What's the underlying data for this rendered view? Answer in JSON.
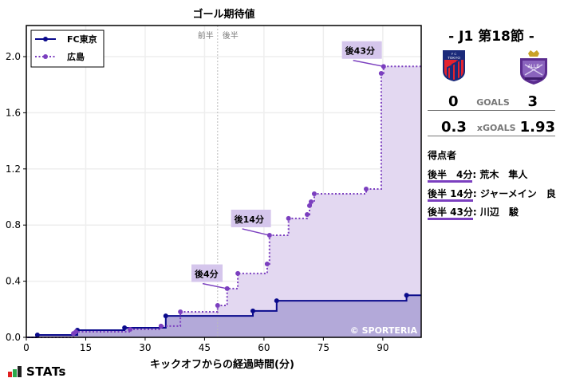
{
  "chart_data": {
    "type": "line",
    "subtype": "step",
    "title": "ゴール期待値",
    "xlabel": "キックオフからの経過時間(分)",
    "ylabel": "",
    "xlim": [
      0,
      99.7
    ],
    "ylim": [
      0,
      2.2
    ],
    "xticks": [
      0,
      15,
      30,
      45,
      60,
      75,
      90
    ],
    "yticks": [
      0.0,
      0.4,
      0.8,
      1.2,
      1.6,
      2.0
    ],
    "grid": true,
    "legend_position": "upper left",
    "half_line": {
      "x": 48.3,
      "labels": [
        "前半",
        "後半"
      ]
    },
    "watermark": "© SPORTERIA",
    "series": [
      {
        "name": "FC東京",
        "color": "#0a0a8c",
        "line_style": "solid",
        "fill": "#b3a9d9",
        "points": [
          {
            "x": 2.8,
            "y": 0.017
          },
          {
            "x": 12.9,
            "y": 0.051
          },
          {
            "x": 24.8,
            "y": 0.068
          },
          {
            "x": 35.2,
            "y": 0.153
          },
          {
            "x": 57.2,
            "y": 0.188
          },
          {
            "x": 63.2,
            "y": 0.261
          },
          {
            "x": 96.0,
            "y": 0.3
          }
        ]
      },
      {
        "name": "広島",
        "color": "#7b3fbf",
        "line_style": "dotted",
        "fill": "#e3d8f1",
        "points": [
          {
            "x": 11.9,
            "y": 0.028
          },
          {
            "x": 12.5,
            "y": 0.04
          },
          {
            "x": 26.2,
            "y": 0.057
          },
          {
            "x": 34.0,
            "y": 0.08
          },
          {
            "x": 38.9,
            "y": 0.182
          },
          {
            "x": 48.3,
            "y": 0.227
          },
          {
            "x": 50.7,
            "y": 0.347
          },
          {
            "x": 53.4,
            "y": 0.455
          },
          {
            "x": 60.8,
            "y": 0.523
          },
          {
            "x": 61.4,
            "y": 0.727
          },
          {
            "x": 66.2,
            "y": 0.847
          },
          {
            "x": 70.9,
            "y": 0.875
          },
          {
            "x": 71.5,
            "y": 0.938
          },
          {
            "x": 71.9,
            "y": 0.966
          },
          {
            "x": 72.7,
            "y": 1.023
          },
          {
            "x": 85.8,
            "y": 1.057
          },
          {
            "x": 89.6,
            "y": 1.881
          },
          {
            "x": 90.2,
            "y": 1.93
          }
        ]
      }
    ],
    "annotations": [
      {
        "text": "後4分",
        "x": 50.7,
        "y": 0.347,
        "box_x": 42.5,
        "box_y": 0.44
      },
      {
        "text": "後14分",
        "x": 61.4,
        "y": 0.727,
        "box_x": 52.5,
        "box_y": 0.83
      },
      {
        "text": "後43分",
        "x": 90.2,
        "y": 1.93,
        "box_x": 80.5,
        "box_y": 2.03
      }
    ]
  },
  "match": {
    "round": "- J1 第18節 -",
    "home": {
      "name": "FC東京",
      "goals": "0",
      "xgoals": "0.3"
    },
    "away": {
      "name": "広島",
      "goals": "3",
      "xgoals": "1.93"
    },
    "goals_label": "GOALS",
    "xgoals_label": "xGOALS"
  },
  "scorers": {
    "title": "得点者",
    "items": [
      {
        "time": "後半　4分",
        "name": ": 荒木　隼人"
      },
      {
        "time": "後半 14分",
        "name": ": ジャーメイン　良"
      },
      {
        "time": "後半 43分",
        "name": ": 川辺　駿"
      }
    ]
  },
  "branding": {
    "logo_text": "STATs"
  }
}
